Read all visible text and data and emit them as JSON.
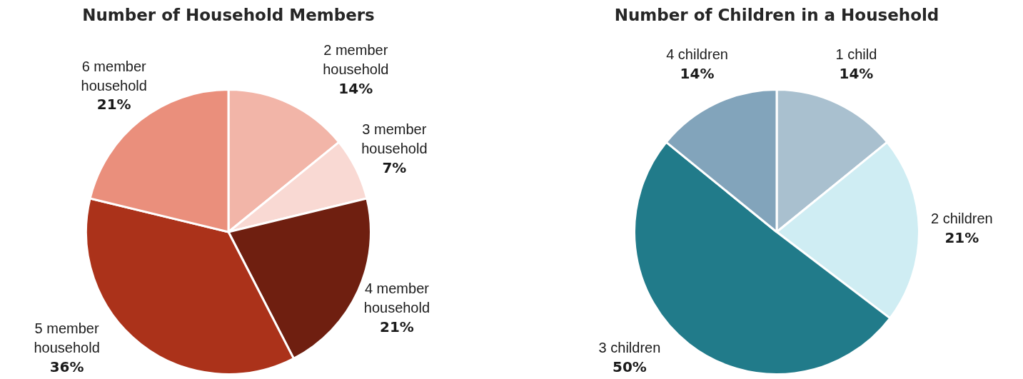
{
  "chart_data": [
    {
      "type": "pie",
      "title": "Number of Household Members",
      "categories": [
        "2 member household",
        "3 member household",
        "4 member household",
        "5 member household",
        "6 member household"
      ],
      "values": [
        14,
        7,
        21,
        36,
        21
      ],
      "value_labels": [
        "14%",
        "7%",
        "21%",
        "36%",
        "21%"
      ],
      "colors": [
        "#f2b5a8",
        "#f9d9d3",
        "#6f1f10",
        "#ab321a",
        "#ea8f7c"
      ],
      "legend": false
    },
    {
      "type": "pie",
      "title": "Number of Children in a Household",
      "categories": [
        "1 child",
        "2 children",
        "3 children",
        "4 children"
      ],
      "values": [
        14,
        21,
        50,
        14
      ],
      "value_labels": [
        "14%",
        "21%",
        "50%",
        "14%"
      ],
      "colors": [
        "#a9c0cf",
        "#cfedf3",
        "#217b8a",
        "#82a4bb"
      ],
      "legend": false
    }
  ]
}
